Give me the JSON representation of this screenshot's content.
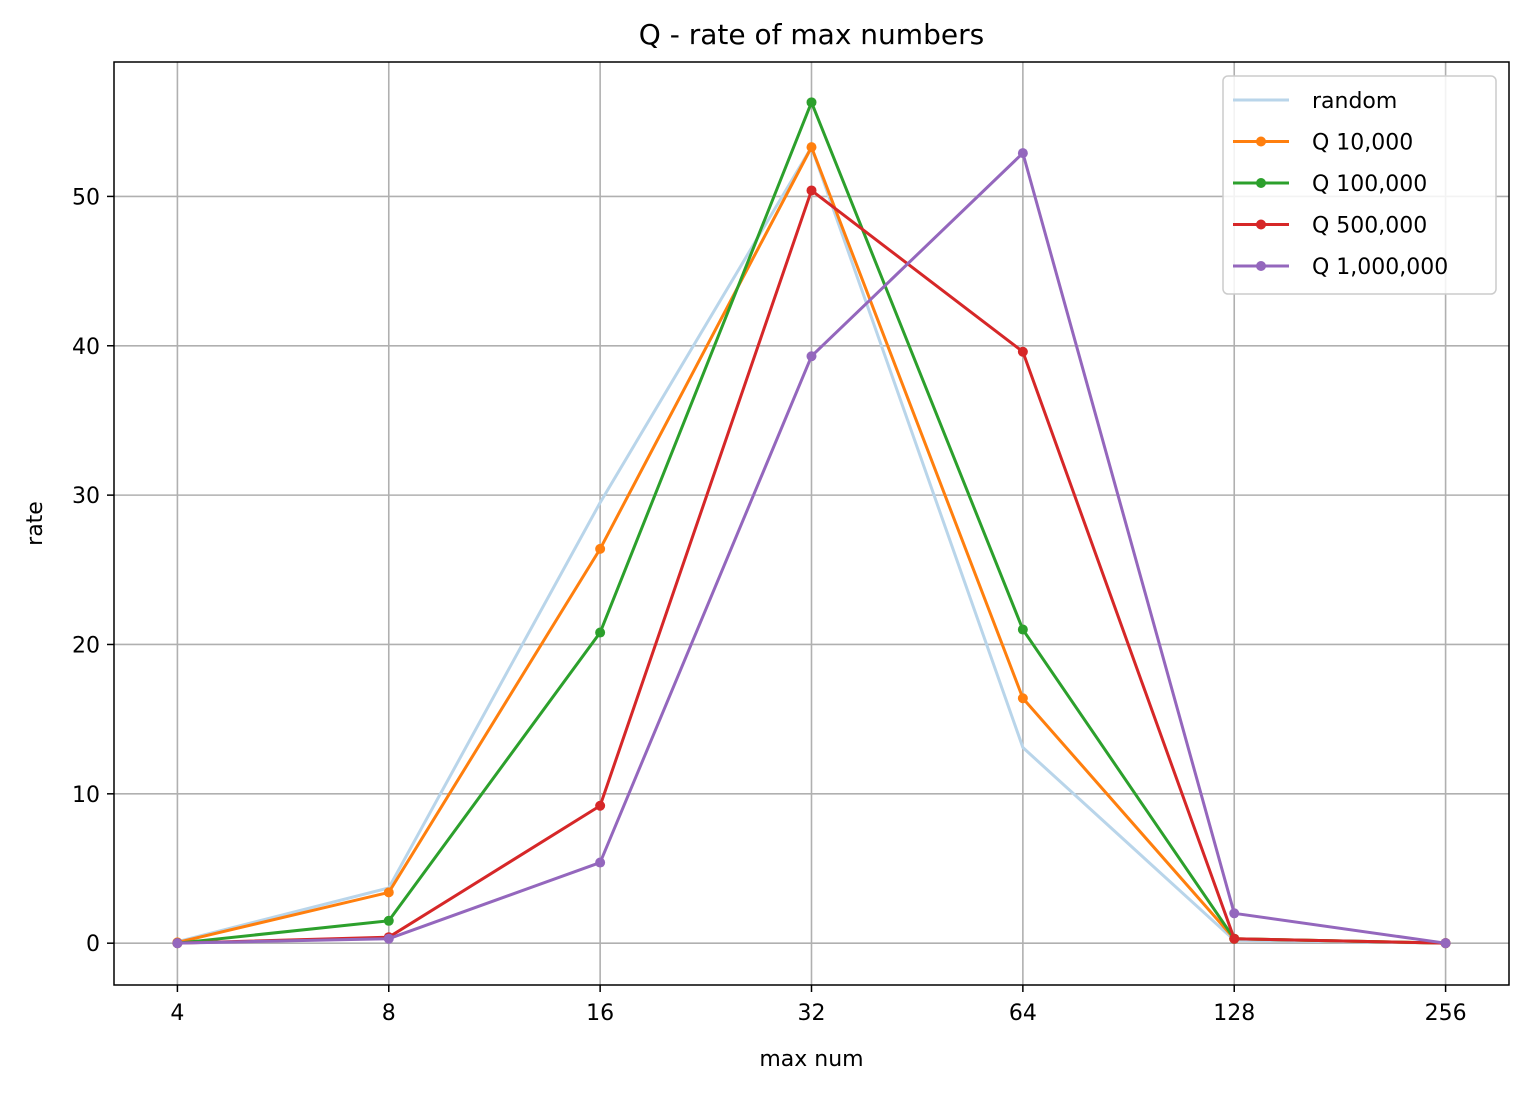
{
  "chart_data": {
    "type": "line",
    "title": "Q - rate of max numbers",
    "xlabel": "max num",
    "ylabel": "rate",
    "x_scale": "log2",
    "categories": [
      "4",
      "8",
      "16",
      "32",
      "64",
      "128",
      "256"
    ],
    "x": [
      4,
      8,
      16,
      32,
      64,
      128,
      256
    ],
    "ylim": [
      -2.8,
      59
    ],
    "yticks": [
      0,
      10,
      20,
      30,
      40,
      50
    ],
    "grid": true,
    "legend_position": "top-right",
    "series": [
      {
        "name": "random",
        "color": "#b9d5ea",
        "markers": false,
        "values": [
          0.1,
          3.7,
          29.5,
          53.3,
          13.1,
          0.2,
          0.0
        ]
      },
      {
        "name": "Q 10,000",
        "color": "#ff7f0e",
        "markers": true,
        "values": [
          0.05,
          3.4,
          26.4,
          53.3,
          16.4,
          0.3,
          0.0
        ]
      },
      {
        "name": "Q 100,000",
        "color": "#2ca02c",
        "markers": true,
        "values": [
          0.0,
          1.5,
          20.8,
          56.3,
          21.0,
          0.3,
          0.0
        ]
      },
      {
        "name": "Q 500,000",
        "color": "#d62728",
        "markers": true,
        "values": [
          0.0,
          0.4,
          9.2,
          50.4,
          39.6,
          0.3,
          0.0
        ]
      },
      {
        "name": "Q 1,000,000",
        "color": "#9467bd",
        "markers": true,
        "values": [
          0.0,
          0.3,
          5.4,
          39.3,
          52.9,
          2.0,
          0.0
        ]
      }
    ]
  }
}
